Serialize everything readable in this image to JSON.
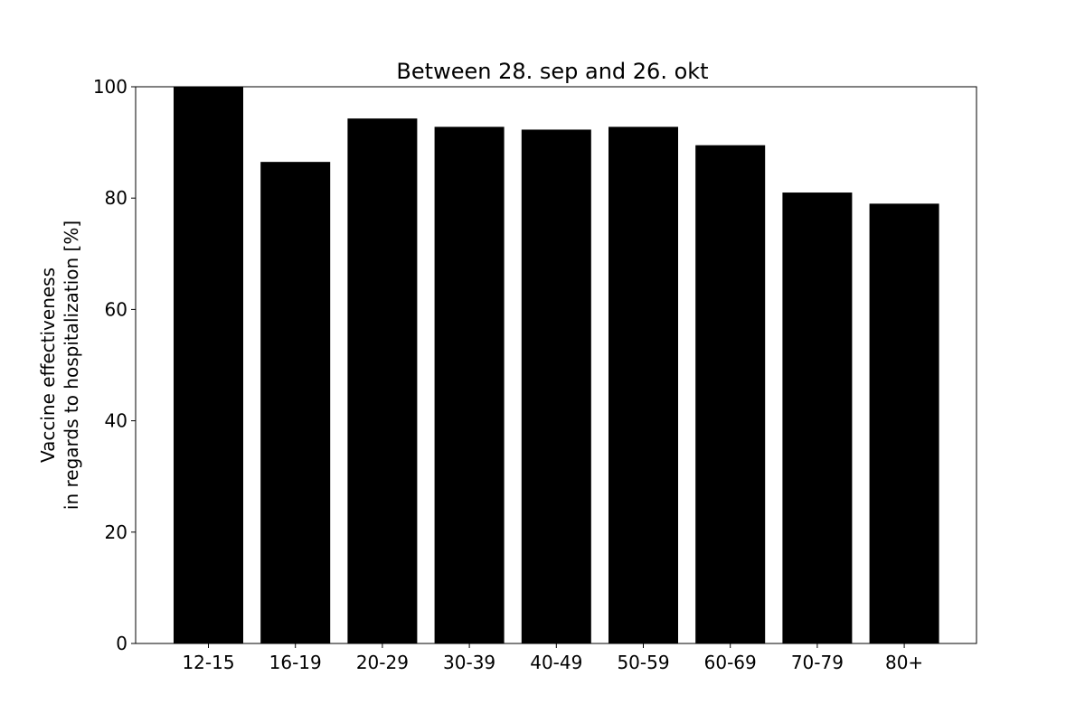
{
  "chart_data": {
    "type": "bar",
    "title": "Between 28. sep and 26. okt",
    "xlabel": "",
    "ylabel_lines": [
      "Vaccine effectiveness",
      "in regards to hospitalization [%]"
    ],
    "categories": [
      "12-15",
      "16-19",
      "20-29",
      "30-39",
      "40-49",
      "50-59",
      "60-69",
      "70-79",
      "80+"
    ],
    "values": [
      100,
      86.5,
      94.3,
      92.8,
      92.3,
      92.8,
      89.5,
      81.0,
      79.0
    ],
    "ylim": [
      0,
      100
    ],
    "yticks": [
      0,
      20,
      40,
      60,
      80,
      100
    ],
    "grid": false,
    "bar_color": "#000000"
  }
}
